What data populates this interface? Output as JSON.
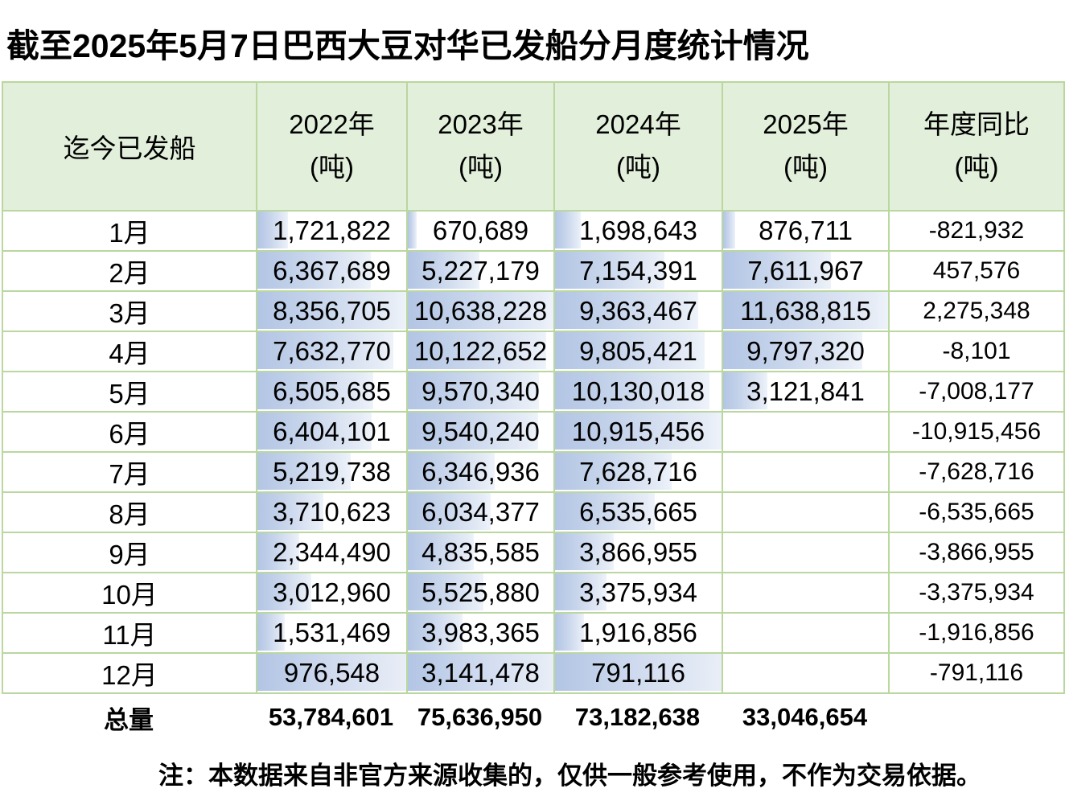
{
  "title": "截至2025年5月7日巴西大豆对华已发船分月度统计情况",
  "table": {
    "header": {
      "col0": "迄今已发船",
      "years": [
        {
          "line1": "2022年",
          "line2": "(吨)"
        },
        {
          "line1": "2023年",
          "line2": "(吨)"
        },
        {
          "line1": "2024年",
          "line2": "(吨)"
        },
        {
          "line1": "2025年",
          "line2": "(吨)"
        },
        {
          "line1": "年度同比",
          "line2": "(吨)"
        }
      ]
    },
    "rows": [
      {
        "month": "1月",
        "y2022": "1,721,822",
        "y2023": "670,689",
        "y2024": "1,698,643",
        "y2025": "876,711",
        "yoy": "-821,932"
      },
      {
        "month": "2月",
        "y2022": "6,367,689",
        "y2023": "5,227,179",
        "y2024": "7,154,391",
        "y2025": "7,611,967",
        "yoy": "457,576"
      },
      {
        "month": "3月",
        "y2022": "8,356,705",
        "y2023": "10,638,228",
        "y2024": "9,363,467",
        "y2025": "11,638,815",
        "yoy": "2,275,348"
      },
      {
        "month": "4月",
        "y2022": "7,632,770",
        "y2023": "10,122,652",
        "y2024": "9,805,421",
        "y2025": "9,797,320",
        "yoy": "-8,101"
      },
      {
        "month": "5月",
        "y2022": "6,505,685",
        "y2023": "9,570,340",
        "y2024": "10,130,018",
        "y2025": "3,121,841",
        "yoy": "-7,008,177"
      },
      {
        "month": "6月",
        "y2022": "6,404,101",
        "y2023": "9,540,240",
        "y2024": "10,915,456",
        "y2025": "",
        "yoy": "-10,915,456"
      },
      {
        "month": "7月",
        "y2022": "5,219,738",
        "y2023": "6,346,936",
        "y2024": "7,628,716",
        "y2025": "",
        "yoy": "-7,628,716"
      },
      {
        "month": "8月",
        "y2022": "3,710,623",
        "y2023": "6,034,377",
        "y2024": "6,535,665",
        "y2025": "",
        "yoy": "-6,535,665"
      },
      {
        "month": "9月",
        "y2022": "2,344,490",
        "y2023": "4,835,585",
        "y2024": "3,866,955",
        "y2025": "",
        "yoy": "-3,866,955"
      },
      {
        "month": "10月",
        "y2022": "3,012,960",
        "y2023": "5,525,880",
        "y2024": "3,375,934",
        "y2025": "",
        "yoy": "-3,375,934"
      },
      {
        "month": "11月",
        "y2022": "1,531,469",
        "y2023": "3,983,365",
        "y2024": "1,916,856",
        "y2025": "",
        "yoy": "-1,916,856"
      },
      {
        "month": "12月",
        "y2022": "976,548",
        "y2023": "3,141,478",
        "y2024": "791,116",
        "y2025": "",
        "yoy": "-791,116",
        "highlight": true
      }
    ],
    "total": {
      "label": "总量",
      "y2022": "53,784,601",
      "y2023": "75,636,950",
      "y2024": "73,182,638",
      "y2025": "33,046,654",
      "yoy": ""
    }
  },
  "note": "注：本数据来自非官方来源收集的，仅供一般参考使用，不作为交易依据。",
  "colors": {
    "header_bg": "#e2efda",
    "outer_border": "#a9d08e",
    "grid_line": "#b9d79e",
    "databar_start": "#b2c5e4",
    "databar_end": "#eef3fa",
    "text": "#000000"
  },
  "chart_data": {
    "type": "table",
    "title": "截至2025年5月7日巴西大豆对华已发船分月度统计情况",
    "unit": "吨",
    "categories": [
      "1月",
      "2月",
      "3月",
      "4月",
      "5月",
      "6月",
      "7月",
      "8月",
      "9月",
      "10月",
      "11月",
      "12月"
    ],
    "series": [
      {
        "name": "2022年(吨)",
        "values": [
          1721822,
          6367689,
          8356705,
          7632770,
          6505685,
          6404101,
          5219738,
          3710623,
          2344490,
          3012960,
          1531469,
          976548
        ],
        "total": 53784601
      },
      {
        "name": "2023年(吨)",
        "values": [
          670689,
          5227179,
          10638228,
          10122652,
          9570340,
          9540240,
          6346936,
          6034377,
          4835585,
          5525880,
          3983365,
          3141478
        ],
        "total": 75636950
      },
      {
        "name": "2024年(吨)",
        "values": [
          1698643,
          7154391,
          9363467,
          9805421,
          10130018,
          10915456,
          7628716,
          6535665,
          3866955,
          3375934,
          1916856,
          791116
        ],
        "total": 73182638
      },
      {
        "name": "2025年(吨)",
        "values": [
          876711,
          7611967,
          11638815,
          9797320,
          3121841,
          null,
          null,
          null,
          null,
          null,
          null,
          null
        ],
        "total": 33046654
      },
      {
        "name": "年度同比(吨)",
        "values": [
          -821932,
          457576,
          2275348,
          -8101,
          -7008177,
          -10915456,
          -7628716,
          -6535665,
          -3866955,
          -3375934,
          -1916856,
          -791116
        ],
        "total": null
      }
    ],
    "layout_hints": {
      "databars": "gradient blue bars in year columns scaled to each column max; 12月 row cells filled full-width",
      "header_fill": "#e2efda",
      "grid": "green cell borders"
    }
  }
}
